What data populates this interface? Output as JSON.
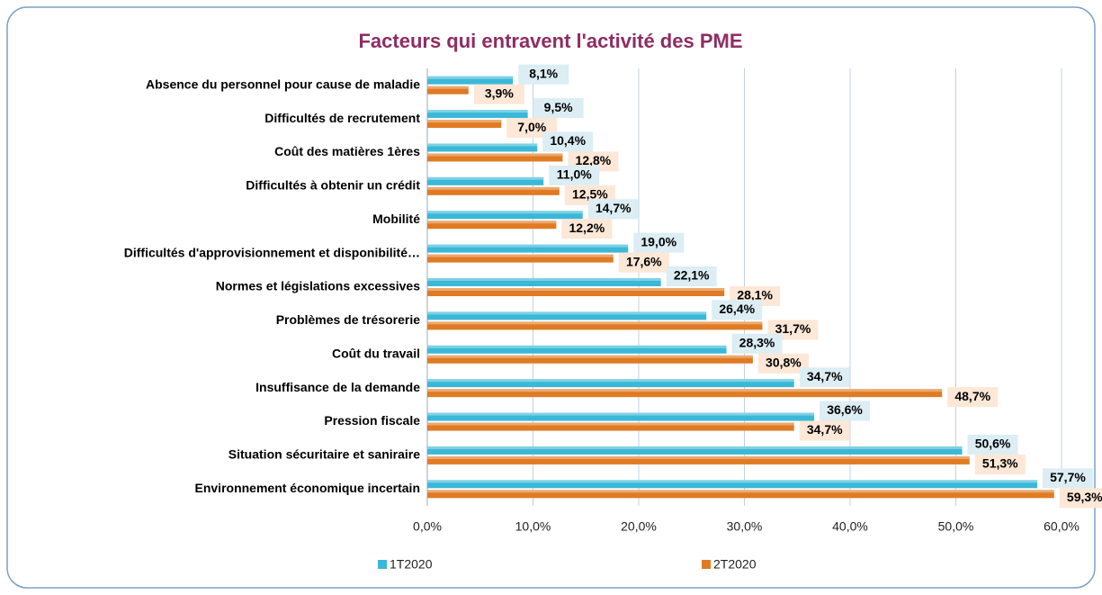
{
  "chart_data": {
    "type": "hbar",
    "title": "Facteurs qui entravent l'activité des PME",
    "categories": [
      "Absence du personnel pour cause de maladie",
      "Difficultés de recrutement",
      "Coût des matières 1ères",
      "Difficultés à obtenir un crédit",
      "Mobilité",
      "Difficultés d'approvisionnement et disponibilité…",
      "Normes et législations excessives",
      "Problèmes de trésorerie",
      "Coût du travail",
      "Insuffisance de la demande",
      "Pression fiscale",
      "Situation sécuritaire et saniraire",
      "Environnement économique incertain"
    ],
    "series": [
      {
        "name": "1T2020",
        "color": "#3bb8d8",
        "values": [
          8.1,
          9.5,
          10.4,
          11.0,
          14.7,
          19.0,
          22.1,
          26.4,
          28.3,
          34.7,
          36.6,
          50.6,
          57.7
        ],
        "value_labels": [
          "8,1%",
          "9,5%",
          "10,4%",
          "11,0%",
          "14,7%",
          "19,0%",
          "22,1%",
          "26,4%",
          "28,3%",
          "34,7%",
          "36,6%",
          "50,6%",
          "57,7%"
        ]
      },
      {
        "name": "2T2020",
        "color": "#e07b24",
        "values": [
          3.9,
          7.0,
          12.8,
          12.5,
          12.2,
          17.6,
          28.1,
          31.7,
          30.8,
          48.7,
          34.7,
          51.3,
          59.3
        ],
        "value_labels": [
          "3,9%",
          "7,0%",
          "12,8%",
          "12,5%",
          "12,2%",
          "17,6%",
          "28,1%",
          "31,7%",
          "30,8%",
          "48,7%",
          "34,7%",
          "51,3%",
          "59,3%"
        ]
      }
    ],
    "xlim": [
      0,
      60
    ],
    "xticks": [
      {
        "value": 0,
        "label": "0,0%"
      },
      {
        "value": 10,
        "label": "10,0%"
      },
      {
        "value": 20,
        "label": "20,0%"
      },
      {
        "value": 30,
        "label": "30,0%"
      },
      {
        "value": 40,
        "label": "40,0%"
      },
      {
        "value": 50,
        "label": "50,0%"
      },
      {
        "value": 60,
        "label": "60,0%"
      }
    ],
    "grid": true,
    "legend": "bottom"
  }
}
